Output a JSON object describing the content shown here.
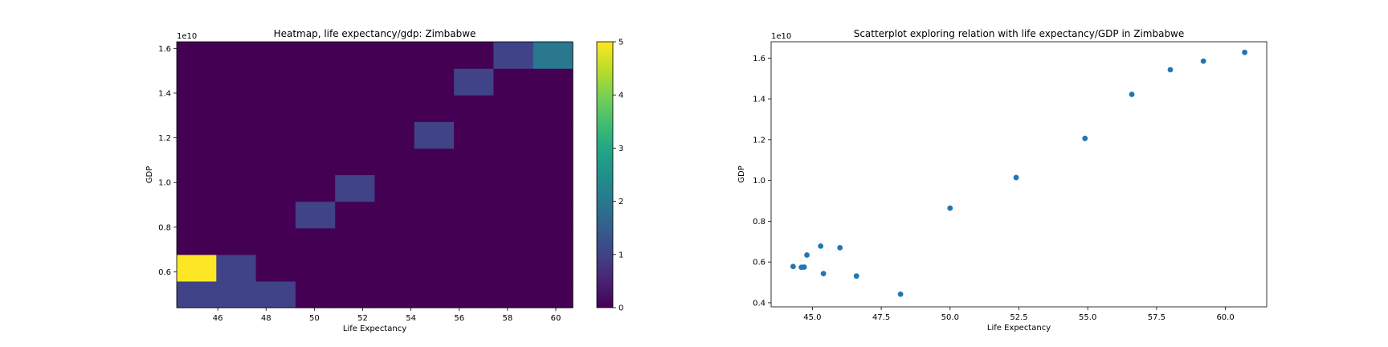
{
  "chart_data": [
    {
      "type": "heatmap",
      "title": "Heatmap, life expectancy/gdp: Zimbabwe",
      "xlabel": "Life Expectancy",
      "ylabel": "GDP",
      "y_offset_label": "1e10",
      "xlim": [
        44.3,
        60.7
      ],
      "ylim": [
        4.4,
        16.3
      ],
      "x_ticks": [
        46,
        48,
        50,
        52,
        54,
        56,
        58,
        60
      ],
      "y_ticks": [
        0.6,
        0.8,
        1.0,
        1.2,
        1.4,
        1.6
      ],
      "bins_x": 10,
      "bins_y": 10,
      "counts": [
        [
          1,
          1,
          1,
          0,
          0,
          0,
          0,
          0,
          0,
          0
        ],
        [
          5,
          1,
          0,
          0,
          0,
          0,
          0,
          0,
          0,
          0
        ],
        [
          0,
          0,
          0,
          0,
          0,
          0,
          0,
          0,
          0,
          0
        ],
        [
          0,
          0,
          0,
          1,
          0,
          0,
          0,
          0,
          0,
          0
        ],
        [
          0,
          0,
          0,
          0,
          1,
          0,
          0,
          0,
          0,
          0
        ],
        [
          0,
          0,
          0,
          0,
          0,
          0,
          0,
          0,
          0,
          0
        ],
        [
          0,
          0,
          0,
          0,
          0,
          0,
          1,
          0,
          0,
          0
        ],
        [
          0,
          0,
          0,
          0,
          0,
          0,
          0,
          0,
          0,
          0
        ],
        [
          0,
          0,
          0,
          0,
          0,
          0,
          0,
          1,
          0,
          0
        ],
        [
          0,
          0,
          0,
          0,
          0,
          0,
          0,
          0,
          1,
          2
        ]
      ],
      "colorbar": {
        "min": 0,
        "max": 5,
        "ticks": [
          0,
          1,
          2,
          3,
          4,
          5
        ]
      }
    },
    {
      "type": "scatter",
      "title": "Scatterplot exploring relation with life expectancy/GDP in Zimbabwe",
      "xlabel": "Life Expectancy",
      "ylabel": "GDP",
      "y_offset_label": "1e10",
      "xlim": [
        43.5,
        61.5
      ],
      "ylim": [
        0.38,
        1.68
      ],
      "x_ticks": [
        45.0,
        47.5,
        50.0,
        52.5,
        55.0,
        57.5,
        60.0
      ],
      "x_tick_labels": [
        "45.0",
        "47.5",
        "50.0",
        "52.5",
        "55.0",
        "57.5",
        "60.0"
      ],
      "y_ticks": [
        0.4,
        0.6,
        0.8,
        1.0,
        1.2,
        1.4,
        1.6
      ],
      "y_tick_labels": [
        "0.4",
        "0.6",
        "0.8",
        "1.0",
        "1.2",
        "1.4",
        "1.6"
      ],
      "color": "#1f77b4",
      "x": [
        44.3,
        44.6,
        44.7,
        44.8,
        45.3,
        45.4,
        46.0,
        46.6,
        48.2,
        50.0,
        52.4,
        54.9,
        56.6,
        58.0,
        59.2,
        60.7
      ],
      "y": [
        0.578,
        0.574,
        0.575,
        0.634,
        0.678,
        0.543,
        0.67,
        0.531,
        0.442,
        0.864,
        1.014,
        1.206,
        1.422,
        1.543,
        1.585,
        1.628
      ]
    }
  ]
}
